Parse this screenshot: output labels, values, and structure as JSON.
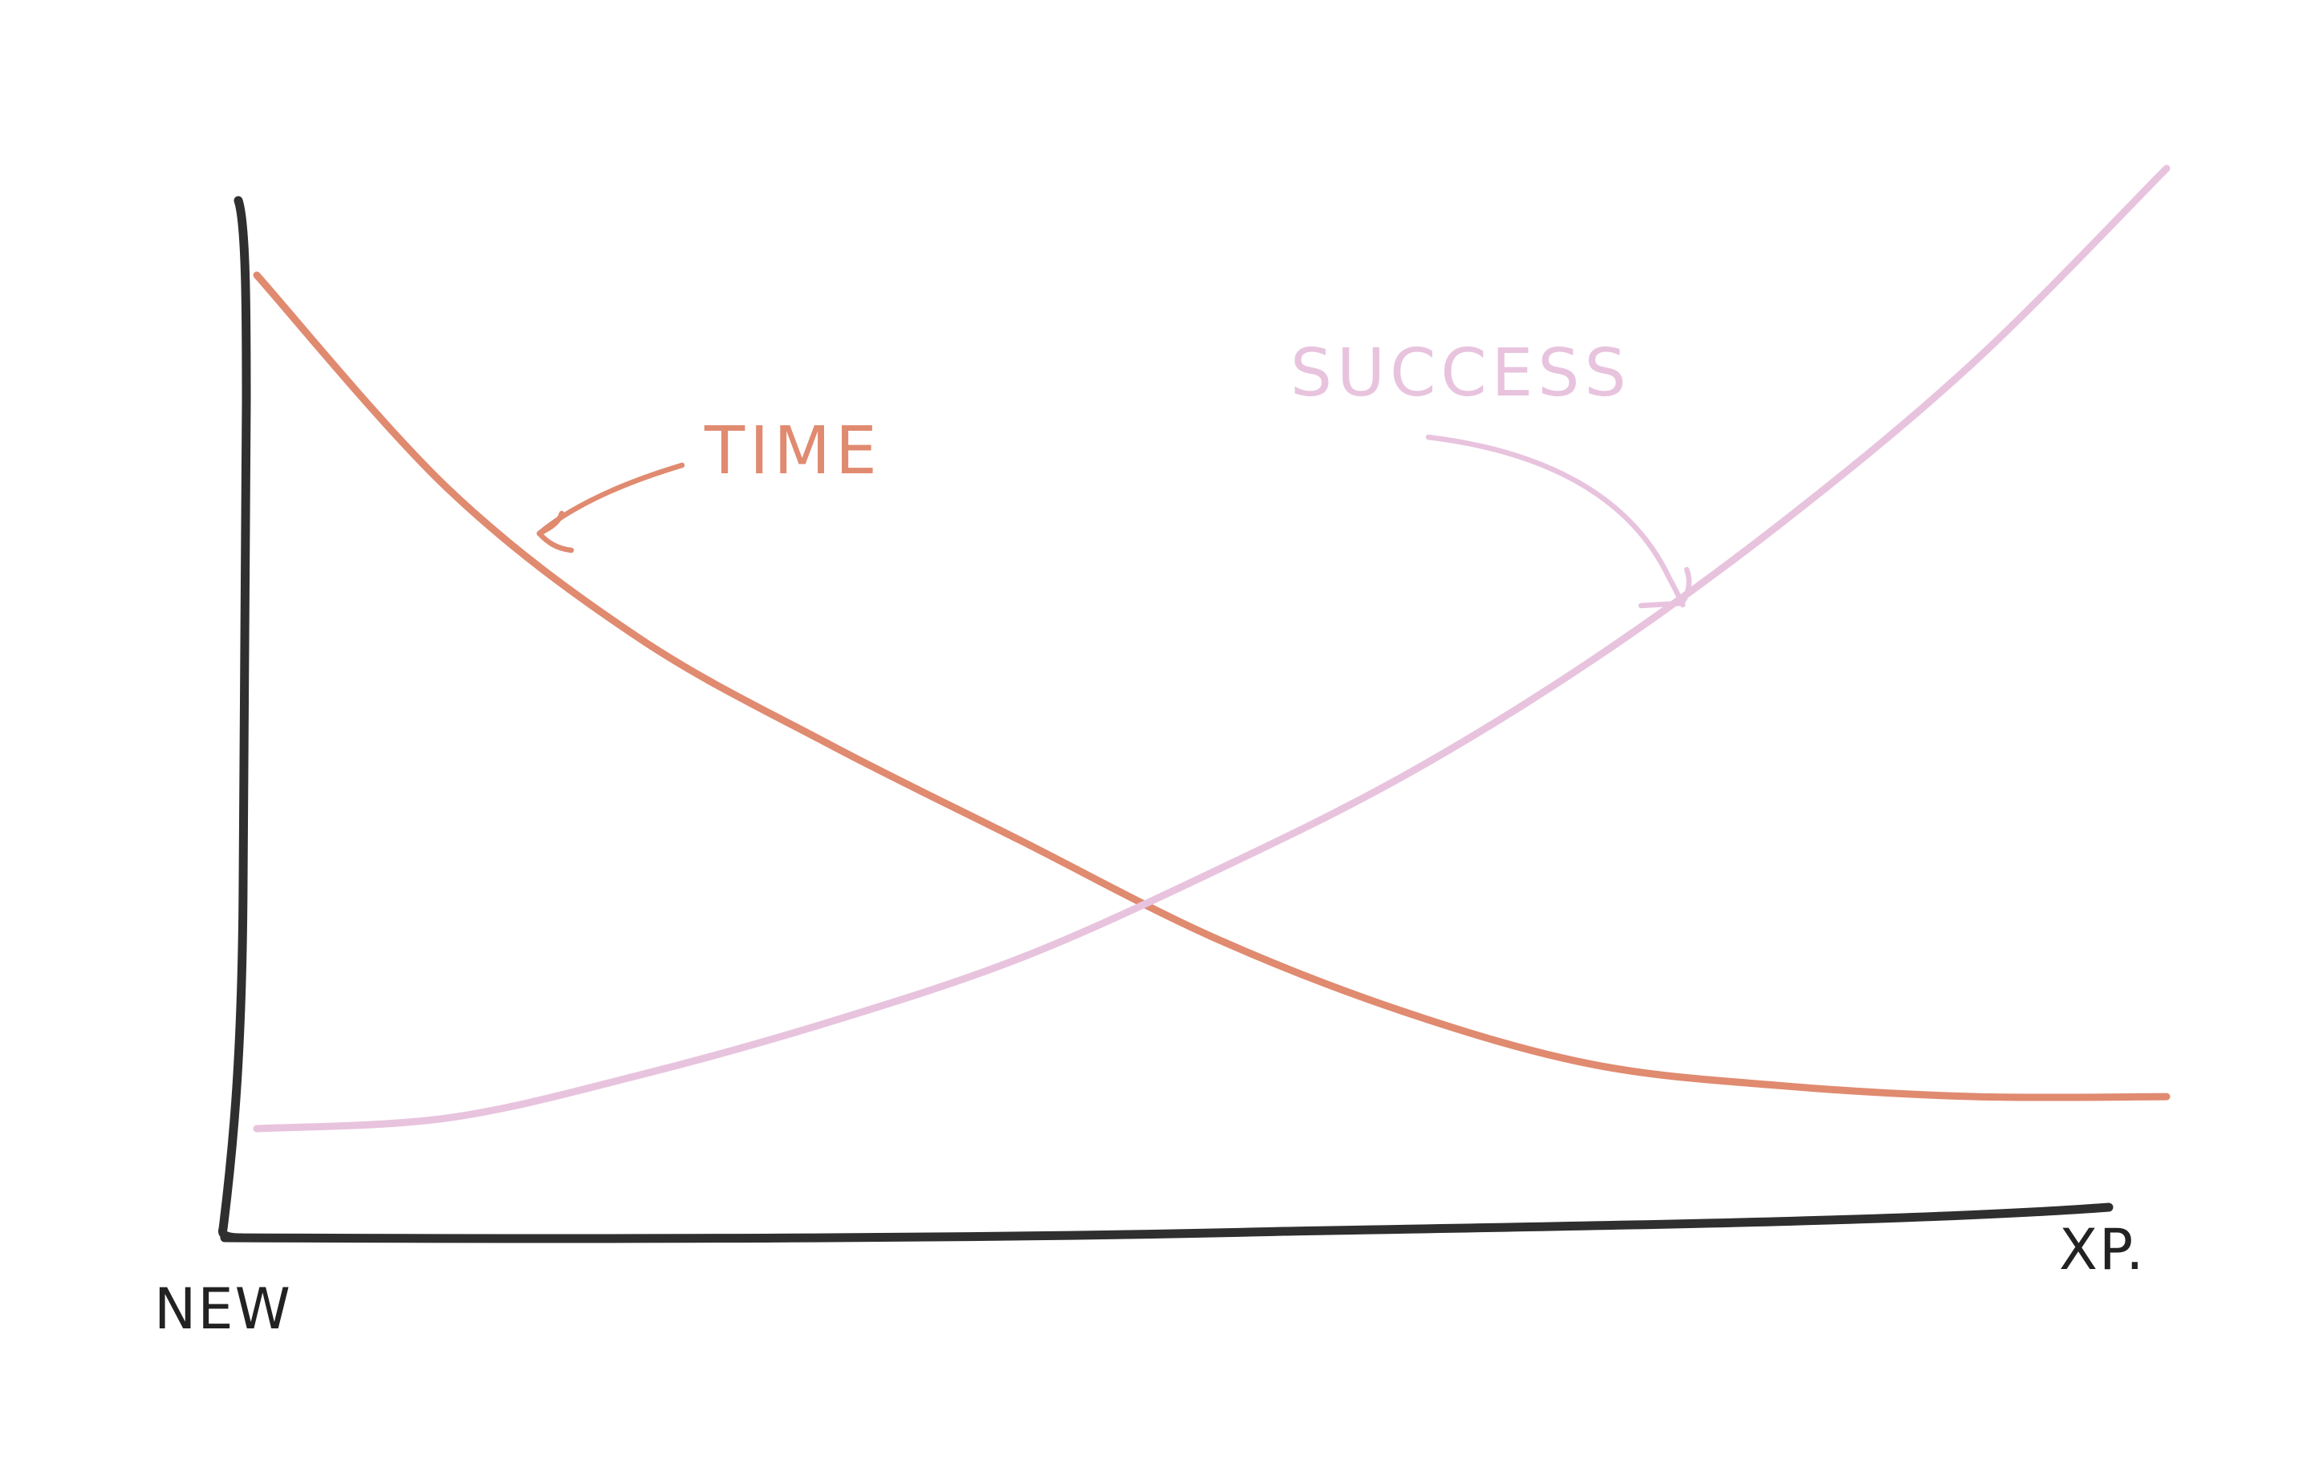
{
  "chart_data": {
    "type": "line",
    "xlabel_start": "NEW",
    "xlabel_end": "XP.",
    "xlim": [
      0,
      10
    ],
    "ylim": [
      0,
      10
    ],
    "grid": false,
    "x": [
      0,
      1,
      2,
      3,
      4,
      5,
      6,
      7,
      8,
      9,
      10
    ],
    "series": [
      {
        "name": "TIME",
        "color": "#e08a70",
        "values": [
          9.0,
          7.0,
          5.6,
          4.6,
          3.7,
          2.8,
          2.1,
          1.6,
          1.4,
          1.3,
          1.3
        ]
      },
      {
        "name": "SUCCESS",
        "color": "#e8c3de",
        "values": [
          1.0,
          1.1,
          1.5,
          2.0,
          2.6,
          3.4,
          4.3,
          5.4,
          6.7,
          8.2,
          10.0
        ]
      }
    ]
  }
}
